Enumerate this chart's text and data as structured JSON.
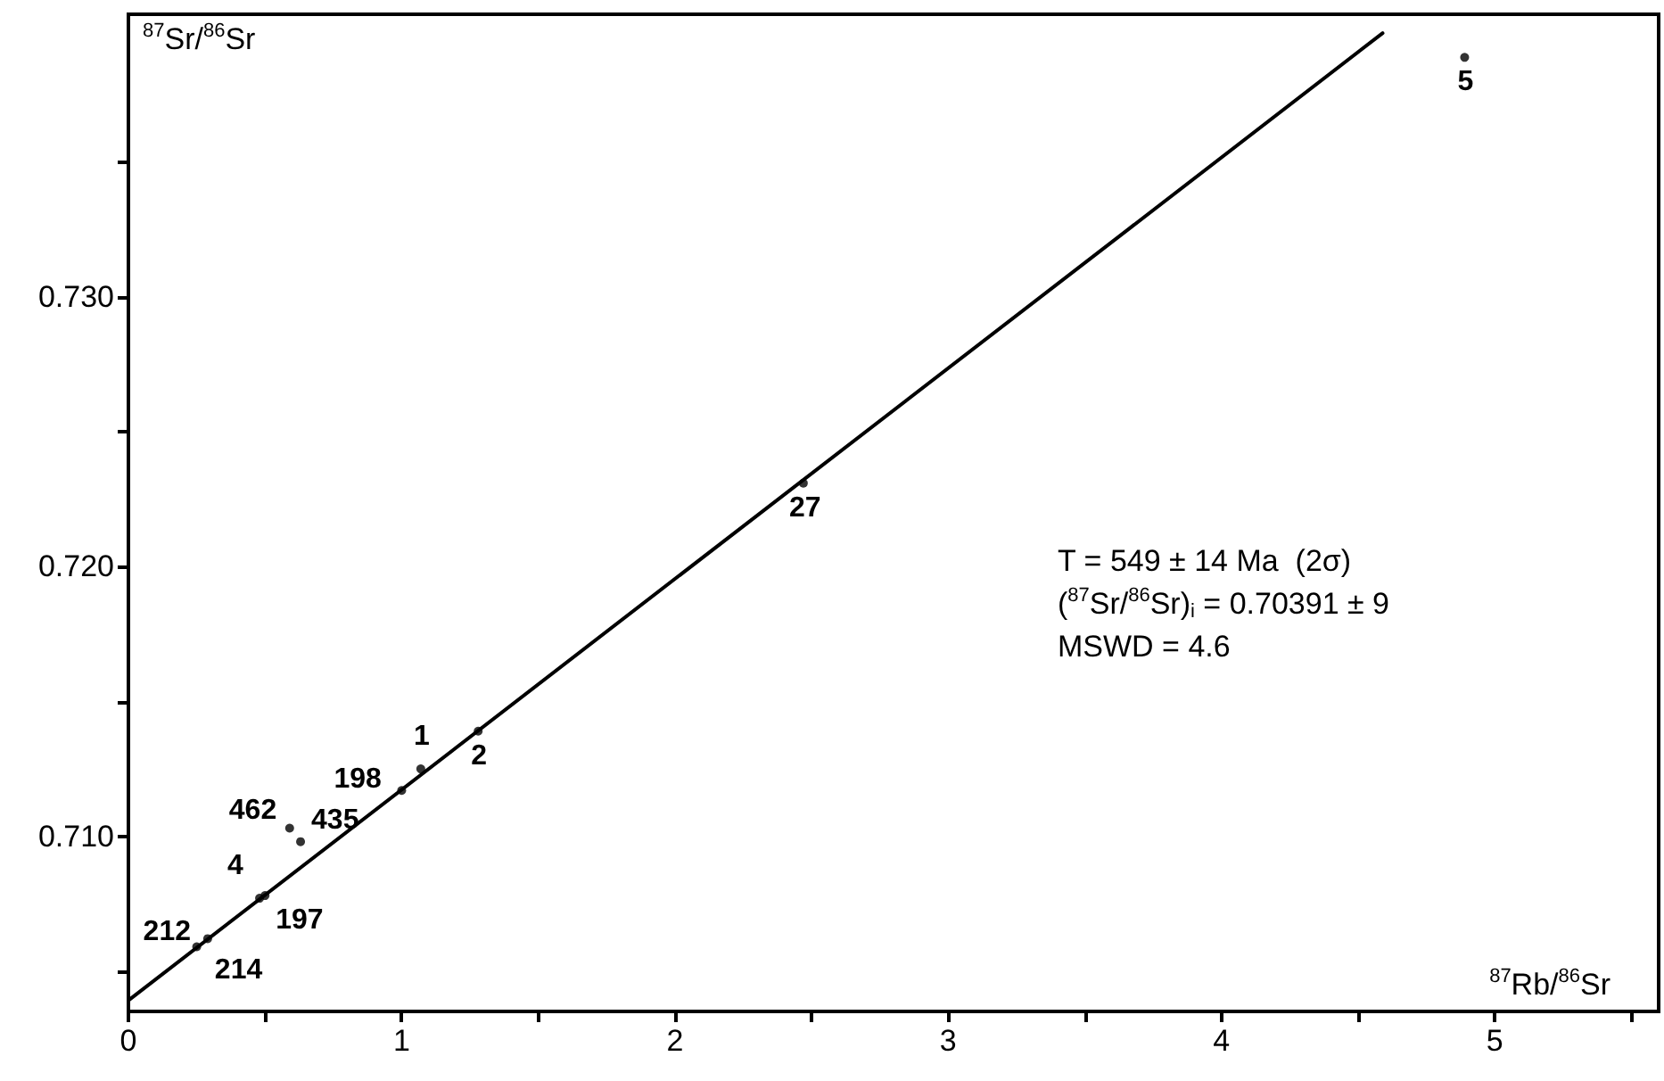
{
  "chart_data": {
    "type": "scatter",
    "xlabel": "$^{87}$Rb/$^{86}$Sr",
    "ylabel": "$^{87}$Sr/$^{86}$Sr",
    "annotations": [
      "T = 549 ± 14 Ma  (2σ)",
      "($^{87}$Sr/$^{86}$Sr)$_{i}$ = 0.70391 ± 9",
      "MSWD = 4.6",
      {
        "text": "212",
        "x": 0.25,
        "y": 0.7059
      },
      {
        "text": "214",
        "x": 0.29,
        "y": 0.7062
      },
      {
        "text": "4",
        "x": 0.48,
        "y": 0.7077
      },
      {
        "text": "197",
        "x": 0.5,
        "y": 0.7078
      },
      {
        "text": "462",
        "x": 0.59,
        "y": 0.7103
      },
      {
        "text": "435",
        "x": 0.63,
        "y": 0.7098
      },
      {
        "text": "198",
        "x": 1.0,
        "y": 0.7117
      },
      {
        "text": "1",
        "x": 1.07,
        "y": 0.7125
      },
      {
        "text": "2",
        "x": 1.28,
        "y": 0.7139
      },
      {
        "text": "27",
        "x": 2.47,
        "y": 0.7231
      },
      {
        "text": "5",
        "x": 4.89,
        "y": 0.7389
      }
    ],
    "xlim": [
      0,
      5.6
    ],
    "xticks": [
      0,
      {
        "value": 0.5,
        "label": null
      },
      1,
      {
        "value": 1.5,
        "label": null
      },
      2,
      {
        "value": 2.5,
        "label": null
      },
      3,
      {
        "value": 3.5,
        "label": null
      },
      4,
      {
        "value": 4.5,
        "label": null
      },
      5,
      {
        "value": 5.5,
        "label": null
      }
    ],
    "ylim": [
      0.7035,
      0.7405
    ],
    "yticks": [
      {
        "value": 0.705,
        "label": null
      },
      {
        "value": 0.71,
        "label": "0.710"
      },
      {
        "value": 0.715,
        "label": null
      },
      {
        "value": 0.72,
        "label": "0.720"
      },
      {
        "value": 0.725,
        "label": null
      },
      {
        "value": 0.73,
        "label": "0.730"
      },
      {
        "value": 0.735,
        "label": null
      }
    ],
    "grid": false,
    "marker": "circle",
    "series": [
      {
        "type": "scatter",
        "color": "#000000",
        "x": [
          0.25,
          0.29,
          0.48,
          0.5,
          0.59,
          0.63,
          1.0,
          1.07,
          1.28,
          2.47,
          4.89
        ],
        "values": [
          0.7059,
          0.7062,
          0.7077,
          0.7078,
          0.7103,
          0.7098,
          0.7117,
          0.7125,
          0.7139,
          0.7231,
          0.7389
        ]
      },
      {
        "type": "line",
        "color": "#000000",
        "x": [
          0,
          4.59
        ],
        "values": [
          0.70391,
          0.7398
        ],
        "marker": "none",
        "line_style": "solid"
      }
    ]
  }
}
